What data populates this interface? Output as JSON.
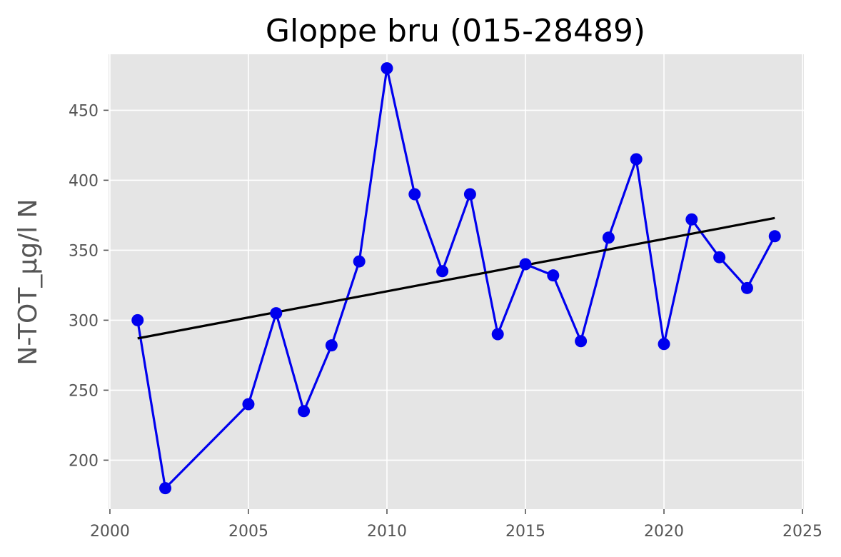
{
  "chart_data": {
    "type": "line",
    "title": "Gloppe bru (015-28489)",
    "xlabel": "",
    "ylabel": "N-TOT_µg/l N",
    "xlim": [
      1999.95,
      2025.05
    ],
    "ylim": [
      165,
      490
    ],
    "x_ticks": [
      2000,
      2005,
      2010,
      2015,
      2020,
      2025
    ],
    "y_ticks": [
      200,
      250,
      300,
      350,
      400,
      450
    ],
    "grid": true,
    "background": "#e5e5e5",
    "series": [
      {
        "type": "line+markers",
        "color": "#0000ee",
        "x": [
          2001,
          2002,
          2005,
          2006,
          2007,
          2008,
          2009,
          2010,
          2011,
          2012,
          2013,
          2014,
          2015,
          2016,
          2017,
          2018,
          2019,
          2020,
          2021,
          2022,
          2023,
          2024
        ],
        "y": [
          300,
          180,
          240,
          305,
          235,
          282,
          342,
          480,
          390,
          335,
          390,
          290,
          340,
          332,
          285,
          359,
          415,
          283,
          372,
          345,
          323,
          360
        ]
      },
      {
        "type": "trend",
        "color": "#000000",
        "x": [
          2001,
          2024
        ],
        "y": [
          287,
          373
        ]
      }
    ]
  }
}
